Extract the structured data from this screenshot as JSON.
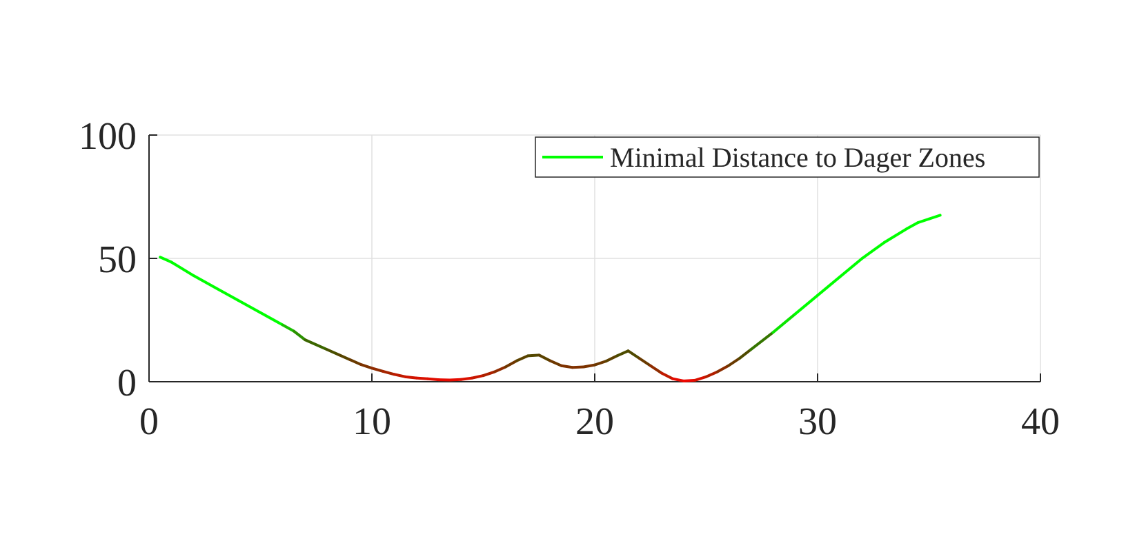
{
  "chart_data": {
    "type": "line",
    "title": "",
    "xlabel": "",
    "ylabel": "",
    "xlim": [
      0,
      40
    ],
    "ylim": [
      0,
      100
    ],
    "x_ticks": [
      0,
      10,
      20,
      30,
      40
    ],
    "y_ticks": [
      0,
      50,
      100
    ],
    "x_tick_labels": [
      "0",
      "10",
      "20",
      "30",
      "40"
    ],
    "y_tick_labels": [
      "0",
      "50",
      "100"
    ],
    "grid": true,
    "legend_position": "top-right",
    "color_scale": {
      "near_color": "#ff0000",
      "far_color": "#00ff00",
      "note_color_mid": "#a05000"
    },
    "series": [
      {
        "name": "Minimal Distance to Dager Zones",
        "legend_color": "#00ff00",
        "x": [
          0.5,
          1,
          2,
          3,
          4,
          5,
          6,
          6.5,
          7,
          8,
          8.5,
          9,
          9.5,
          10,
          10.5,
          11,
          11.5,
          12,
          12.5,
          13,
          13.5,
          14,
          14.5,
          15,
          15.5,
          16,
          16.5,
          17,
          17.5,
          18,
          18.5,
          19,
          19.5,
          20,
          20.5,
          21,
          21.5,
          22,
          22.5,
          23,
          23.5,
          24,
          24.5,
          25,
          25.5,
          26,
          26.5,
          27,
          28,
          29,
          30,
          31,
          32,
          33,
          34,
          34.5,
          35,
          35.5
        ],
        "y": [
          50.5,
          48.5,
          43,
          38,
          33,
          28,
          23,
          20.5,
          17,
          13,
          11,
          9,
          7,
          5.5,
          4.2,
          3,
          2,
          1.5,
          1.2,
          0.8,
          0.7,
          0.9,
          1.5,
          2.5,
          4,
          6,
          8.5,
          10.5,
          10.8,
          8.5,
          6.5,
          5.8,
          6,
          6.8,
          8.3,
          10.5,
          12.5,
          9.5,
          6.5,
          3.5,
          1.2,
          0.3,
          0.6,
          2,
          4,
          6.5,
          9.5,
          13,
          20,
          27.5,
          35,
          42.5,
          50,
          56.5,
          62,
          64.5,
          66,
          67.5
        ]
      }
    ]
  }
}
